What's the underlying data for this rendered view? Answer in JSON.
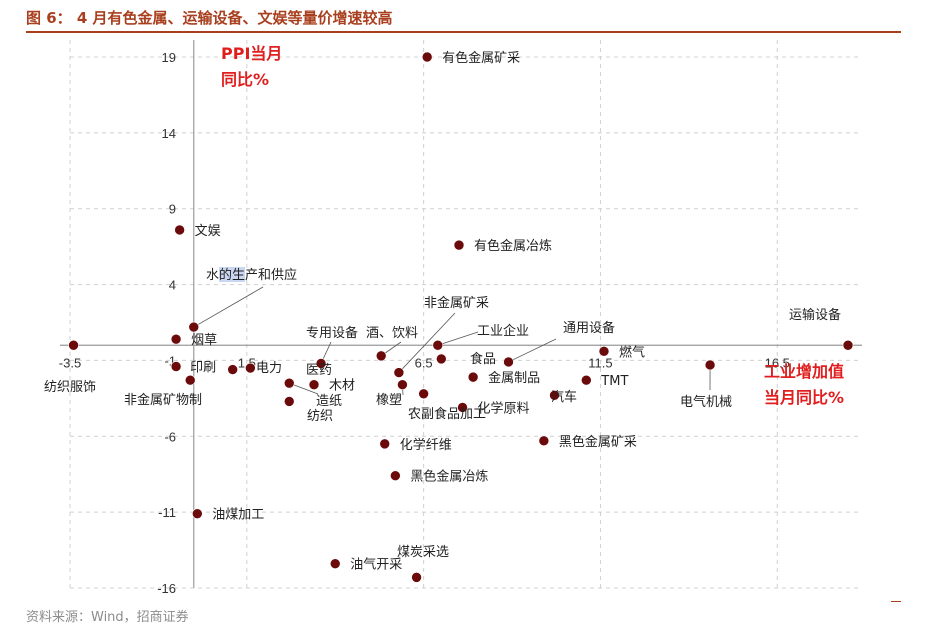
{
  "figure": {
    "title": "图 6： 4 月有色金属、运输设备、文娱等量价增速较高",
    "source": "资料来源：Wind，招商证券"
  },
  "colors": {
    "title": "#a8401f",
    "point": "#6b0a0a",
    "axis_title": "#e01e1e",
    "grid": "#d0d0d0"
  },
  "chart_data": {
    "type": "scatter",
    "title": "图 6： 4 月有色金属、运输设备、文娱等量价增速较高",
    "xlabel": "工业增加值\n当月同比%",
    "ylabel": "PPI当月\n同比%",
    "xlim": [
      -3.5,
      18.5
    ],
    "ylim": [
      -16,
      20
    ],
    "x_ticks": [
      -3.5,
      1.5,
      6.5,
      11.5,
      16.5
    ],
    "y_ticks": [
      19,
      14,
      9,
      4,
      -1,
      -6,
      -11,
      -16
    ],
    "grid": true,
    "points": [
      {
        "label": "有色金属矿采",
        "x": 6.6,
        "y": 19.0
      },
      {
        "label": "文娱",
        "x": -0.4,
        "y": 7.6
      },
      {
        "label": "有色金属冶炼",
        "x": 7.5,
        "y": 6.6
      },
      {
        "label": "水的生产和供应",
        "x": 0.0,
        "y": 1.2
      },
      {
        "label": "烟草",
        "x": -0.5,
        "y": 0.4
      },
      {
        "label": "纺织服饰",
        "x": -3.4,
        "y": 0.0
      },
      {
        "label": "印刷",
        "x": -0.5,
        "y": -1.4
      },
      {
        "label": "电力",
        "x": 1.1,
        "y": -1.6
      },
      {
        "label": "非金属矿物制",
        "x": -0.1,
        "y": -2.3
      },
      {
        "label": "医药",
        "x": 1.6,
        "y": -1.5
      },
      {
        "label": "专用设备",
        "x": 3.6,
        "y": -1.2
      },
      {
        "label": "酒、饮料",
        "x": 5.3,
        "y": -0.7
      },
      {
        "label": "木材",
        "x": 3.4,
        "y": -2.6
      },
      {
        "label": "造纸",
        "x": 2.7,
        "y": -2.5
      },
      {
        "label": "纺织",
        "x": 2.7,
        "y": -3.7
      },
      {
        "label": "橡塑",
        "x": 5.9,
        "y": -2.6
      },
      {
        "label": "非金属矿采",
        "x": 5.8,
        "y": -1.8
      },
      {
        "label": "工业企业",
        "x": 6.9,
        "y": 0.0
      },
      {
        "label": "食品",
        "x": 7.0,
        "y": -0.9
      },
      {
        "label": "通用设备",
        "x": 8.9,
        "y": -1.1
      },
      {
        "label": "金属制品",
        "x": 7.9,
        "y": -2.1
      },
      {
        "label": "农副食品加工",
        "x": 6.5,
        "y": -3.2
      },
      {
        "label": "化学原料",
        "x": 7.6,
        "y": -4.1
      },
      {
        "label": "汽车",
        "x": 10.2,
        "y": -3.3
      },
      {
        "label": "TMT",
        "x": 11.1,
        "y": -2.3
      },
      {
        "label": "燃气",
        "x": 11.6,
        "y": -0.4
      },
      {
        "label": "电气机械",
        "x": 14.6,
        "y": -1.3
      },
      {
        "label": "运输设备",
        "x": 18.5,
        "y": 0.0
      },
      {
        "label": "化学纤维",
        "x": 5.4,
        "y": -6.5
      },
      {
        "label": "黑色金属矿采",
        "x": 9.9,
        "y": -6.3
      },
      {
        "label": "黑色金属冶炼",
        "x": 5.7,
        "y": -8.6
      },
      {
        "label": "油煤加工",
        "x": 0.1,
        "y": -11.1
      },
      {
        "label": "油气开采",
        "x": 4.0,
        "y": -14.4
      },
      {
        "label": "煤炭采选",
        "x": 6.3,
        "y": -15.3
      }
    ]
  }
}
